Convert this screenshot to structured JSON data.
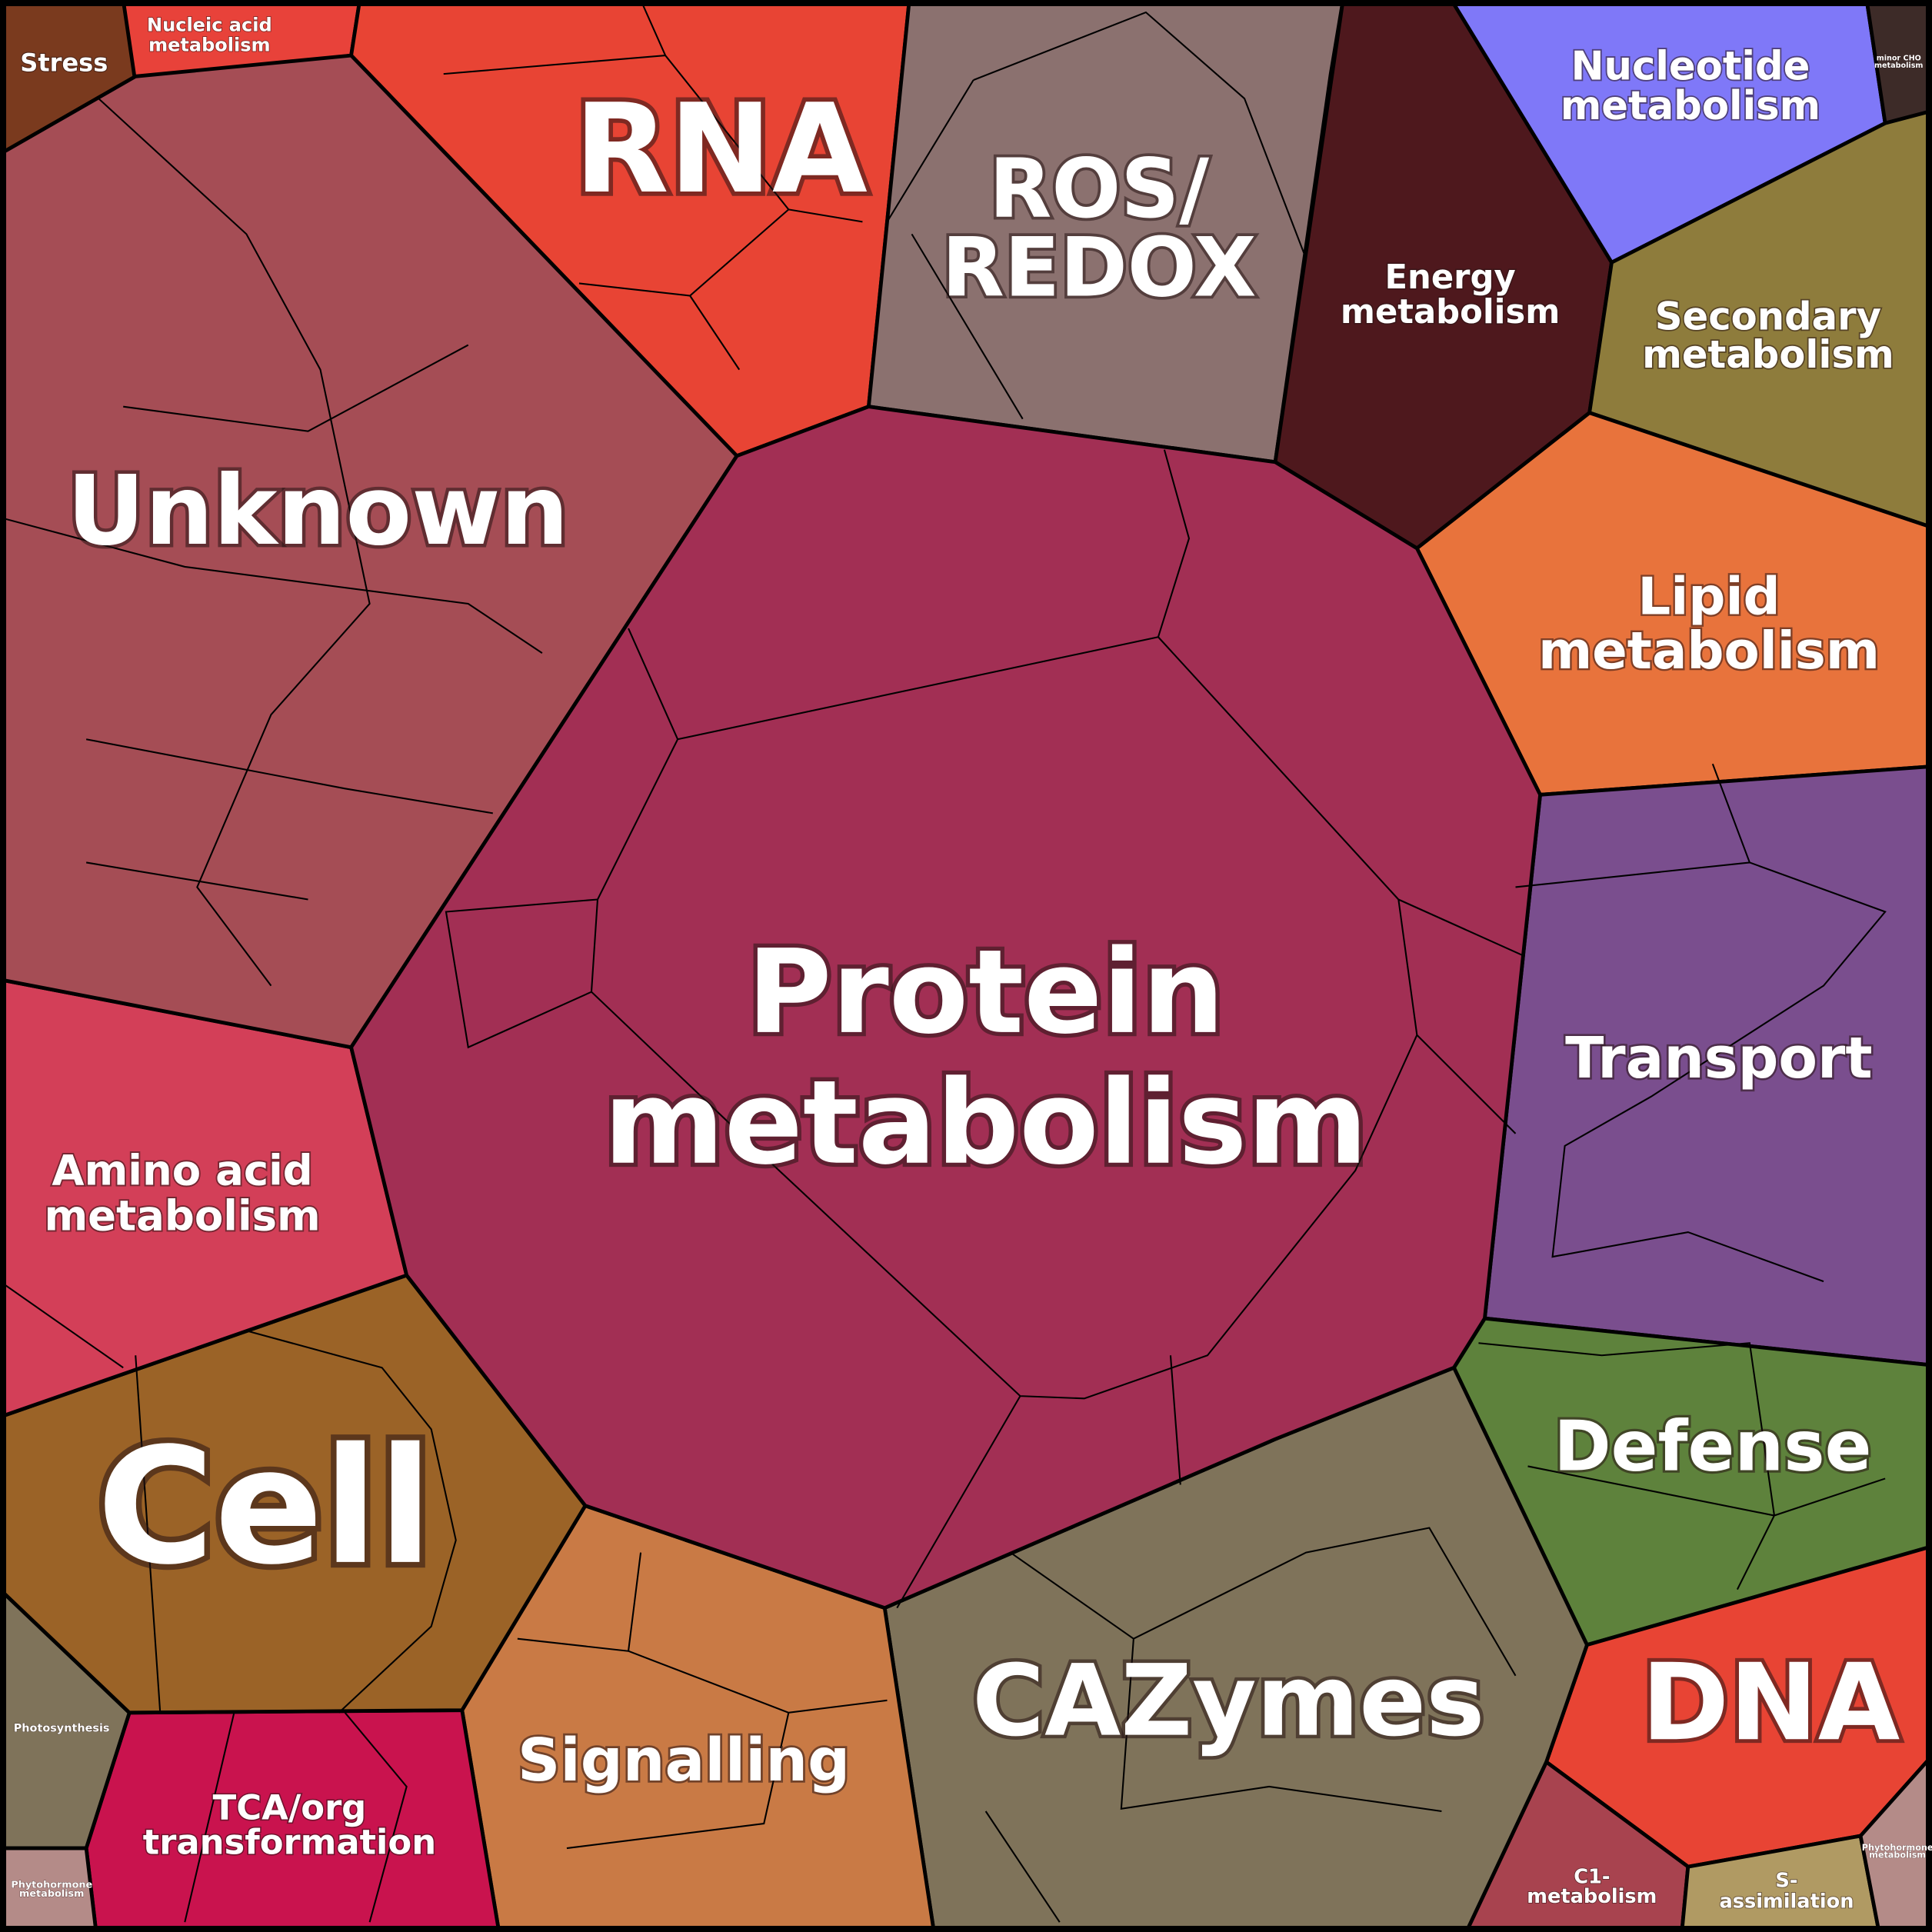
{
  "nodes": [
    {
      "label": [
        "Stress"
      ],
      "color": "#7a3a1e"
    },
    {
      "label": [
        "Nucleic acid",
        "metabolism"
      ],
      "color": "#e8423a"
    },
    {
      "label": [
        "RNA"
      ],
      "color": "#e84434"
    },
    {
      "label": [
        "ROS/",
        "REDOX"
      ],
      "color": "#8b716f"
    },
    {
      "label": [
        "Energy",
        "metabolism"
      ],
      "color": "#4e181d"
    },
    {
      "label": [
        "Nucleotide",
        "metabolism"
      ],
      "color": "#7f78f8"
    },
    {
      "label": [
        "minor CHO",
        "metabolism"
      ],
      "color": "#3d2b28"
    },
    {
      "label": [
        "Secondary",
        "metabolism"
      ],
      "color": "#8e7c3c"
    },
    {
      "label": [
        "Lipid",
        "metabolism"
      ],
      "color": "#e8733c"
    },
    {
      "label": [
        "Transport"
      ],
      "color": "#7a4e8e"
    },
    {
      "label": [
        "Defense"
      ],
      "color": "#5e823c"
    },
    {
      "label": [
        "DNA"
      ],
      "color": "#e84434"
    },
    {
      "label": [
        "C1-",
        "metabolism"
      ],
      "color": "#a8434f"
    },
    {
      "label": [
        "S-",
        "assimilation"
      ],
      "color": "#b09a63"
    },
    {
      "label": [
        "Phytohormone",
        "metabolism"
      ],
      "color": "#b48b88"
    },
    {
      "label": [
        "CAZymes"
      ],
      "color": "#7f735a"
    },
    {
      "label": [
        "Signalling"
      ],
      "color": "#c97a45"
    },
    {
      "label": [
        "TCA/org",
        "transformation"
      ],
      "color": "#c9134e"
    },
    {
      "label": [
        "Photosynthesis"
      ],
      "color": "#7f735a"
    },
    {
      "label": [
        "Phytohormone",
        "metabolism"
      ],
      "color": "#b48b88"
    },
    {
      "label": [
        "Cell"
      ],
      "color": "#9b6327"
    },
    {
      "label": [
        "Amino acid",
        "metabolism"
      ],
      "color": "#d33f58"
    },
    {
      "label": [
        "Unknown"
      ],
      "color": "#a54d55"
    },
    {
      "label": [
        "Protein",
        "metabolism"
      ],
      "color": "#a22f54"
    }
  ]
}
